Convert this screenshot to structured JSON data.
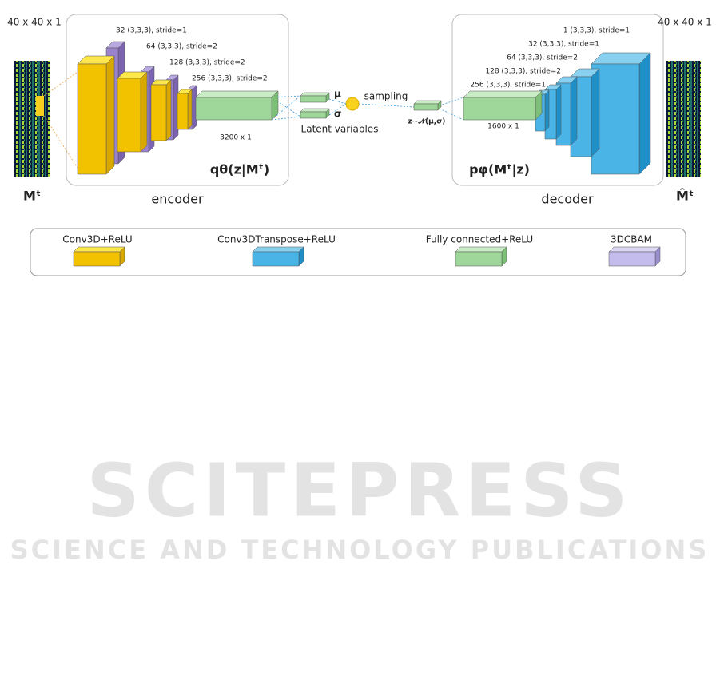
{
  "inputs": {
    "left_size": "40 x 40 x 1",
    "right_size": "40 x 40 x 1",
    "left_symbol": "Mᵗ",
    "right_symbol": "M̂ᵗ"
  },
  "encoder": {
    "layers": [
      "32 (3,3,3), stride=1",
      "64 (3,3,3), stride=2",
      "128 (3,3,3), stride=2",
      "256 (3,3,3), stride=2"
    ],
    "fc": "3200 x 1",
    "formula": "qθ(z|Mᵗ)",
    "label": "encoder"
  },
  "latent": {
    "mu": "μ",
    "sigma": "σ",
    "label": "Latent variables",
    "sampling": "sampling",
    "z": "z~𝒩(μ,σ)"
  },
  "decoder": {
    "layers": [
      "1 (3,3,3), stride=1",
      "32 (3,3,3), stride=1",
      "64 (3,3,3), stride=2",
      "128 (3,3,3), stride=2",
      "256 (3,3,3), stride=1"
    ],
    "fc": "1600 x 1",
    "formula": "pφ(Mᵗ|z)",
    "label": "decoder"
  },
  "legend": [
    "Conv3D+ReLU",
    "Conv3DTranspose+ReLU",
    "Fully connected+ReLU",
    "3DCBAM"
  ],
  "watermark": {
    "title": "SCITEPRESS",
    "subtitle": "SCIENCE AND TECHNOLOGY PUBLICATIONS"
  }
}
